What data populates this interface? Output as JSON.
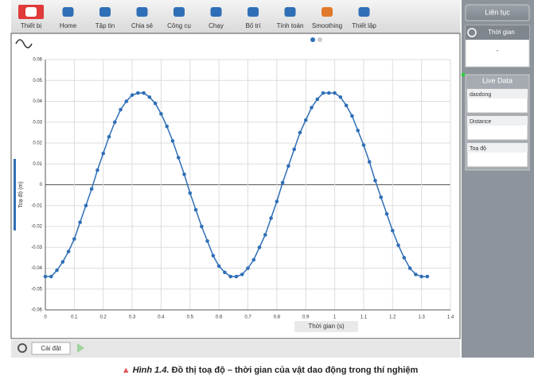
{
  "toolbar": [
    "Thiết bị",
    "Home",
    "Tập tin",
    "Chia sẻ",
    "Công cụ",
    "Chạy",
    "Bố trí",
    "Tính toán",
    "Smoothing",
    "Thiết lập"
  ],
  "side_panel": {
    "mode": "Liên tục",
    "timer": {
      "label": "Thời gian",
      "value": "-"
    },
    "live_title": "Live Data",
    "sensors": [
      "daodong",
      "Distance",
      "Toạ độ"
    ]
  },
  "bottom_bar": {
    "settings": "Cài đặt"
  },
  "caption": {
    "figure": "Hình 1.4.",
    "text": "Đồ thị toạ độ – thời gian của vật dao động trong thí nghiệm"
  },
  "chart_data": {
    "type": "line",
    "x_label": "Thời gian (s)",
    "y_label": "Toạ độ (m)",
    "xlim": [
      0,
      1.4
    ],
    "xticks": [
      0,
      0.1,
      0.2,
      0.3,
      0.4,
      0.5,
      0.6,
      0.7,
      0.8,
      0.9,
      1,
      1.1,
      1.2,
      1.3,
      1.4
    ],
    "ylim": [
      -0.06,
      0.06
    ],
    "yticks": [
      -0.06,
      -0.05,
      -0.04,
      -0.03,
      -0.02,
      -0.01,
      0,
      0.01,
      0.02,
      0.03,
      0.04,
      0.05,
      0.06
    ],
    "grid": true,
    "color": "#2f6fb7",
    "x": [
      0,
      0.02,
      0.04,
      0.06,
      0.08,
      0.1,
      0.12,
      0.14,
      0.16,
      0.18,
      0.2,
      0.22,
      0.24,
      0.26,
      0.28,
      0.3,
      0.32,
      0.34,
      0.36,
      0.38,
      0.4,
      0.42,
      0.44,
      0.46,
      0.48,
      0.5,
      0.52,
      0.54,
      0.56,
      0.58,
      0.6,
      0.62,
      0.64,
      0.66,
      0.68,
      0.7,
      0.72,
      0.74,
      0.76,
      0.78,
      0.8,
      0.82,
      0.84,
      0.86,
      0.88,
      0.9,
      0.92,
      0.94,
      0.96,
      0.98,
      1,
      1.02,
      1.04,
      1.06,
      1.08,
      1.1,
      1.12,
      1.14,
      1.16,
      1.18,
      1.2,
      1.22,
      1.24,
      1.26,
      1.28,
      1.3,
      1.32
    ],
    "values": [
      -0.044,
      -0.044,
      -0.041,
      -0.037,
      -0.032,
      -0.026,
      -0.018,
      -0.01,
      -0.002,
      0.007,
      0.015,
      0.023,
      0.03,
      0.036,
      0.04,
      0.043,
      0.044,
      0.044,
      0.042,
      0.039,
      0.034,
      0.028,
      0.021,
      0.013,
      0.005,
      -0.004,
      -0.012,
      -0.02,
      -0.027,
      -0.034,
      -0.039,
      -0.042,
      -0.044,
      -0.044,
      -0.043,
      -0.04,
      -0.036,
      -0.03,
      -0.024,
      -0.016,
      -0.008,
      0.001,
      0.009,
      0.017,
      0.025,
      0.031,
      0.037,
      0.041,
      0.044,
      0.044,
      0.044,
      0.042,
      0.038,
      0.033,
      0.026,
      0.019,
      0.011,
      0.002,
      -0.006,
      -0.014,
      -0.022,
      -0.029,
      -0.035,
      -0.04,
      -0.043,
      -0.044,
      -0.044
    ]
  }
}
